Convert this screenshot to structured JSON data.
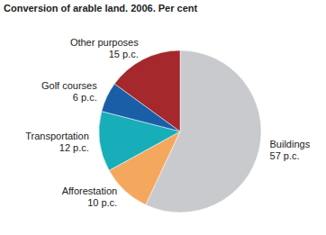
{
  "chart_data": {
    "type": "pie",
    "title": "Conversion of arable land. 2006. Per cent",
    "categories": [
      "Buildings",
      "Afforestation",
      "Transportation",
      "Golf courses",
      "Other purposes"
    ],
    "values": [
      57,
      10,
      12,
      6,
      15
    ],
    "value_labels": [
      "57 p.c.",
      "10 p.c.",
      "12 p.c.",
      "6 p.c.",
      "15 p.c."
    ],
    "colors": [
      "#c9cacd",
      "#f4a85e",
      "#17adb9",
      "#1b5ea8",
      "#a4282c"
    ],
    "data_labels": true
  }
}
